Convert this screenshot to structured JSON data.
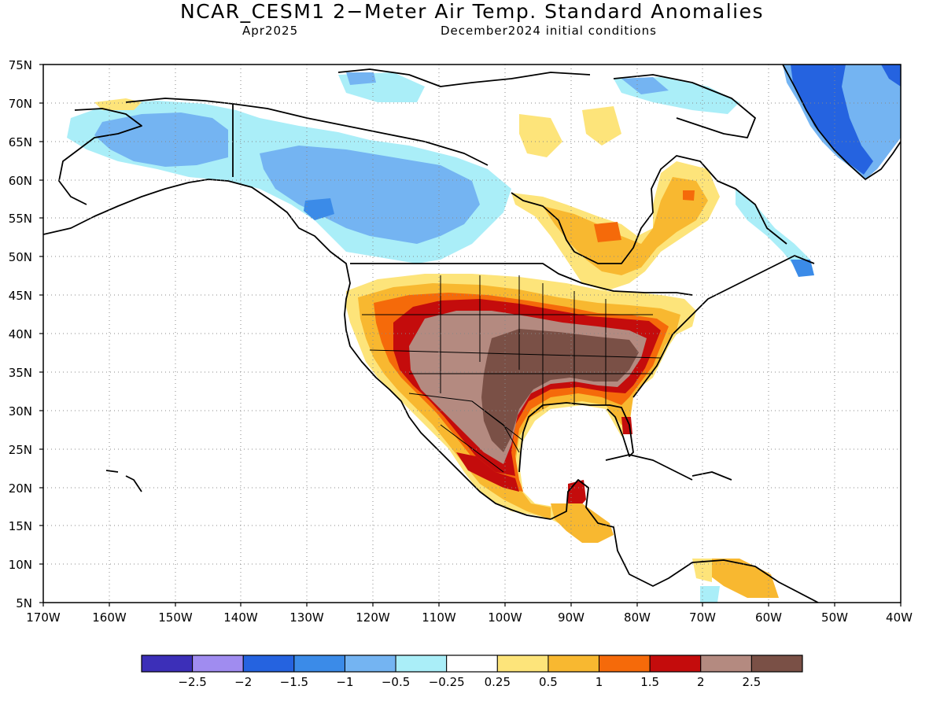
{
  "title": "NCAR_CESM1 2−Meter Air Temp. Standard Anomalies",
  "subtitle_left": "Apr2025",
  "subtitle_right": "December2024 initial conditions",
  "lat_labels": [
    "75N",
    "70N",
    "65N",
    "60N",
    "55N",
    "50N",
    "45N",
    "40N",
    "35N",
    "30N",
    "25N",
    "20N",
    "15N",
    "10N",
    "5N"
  ],
  "lon_labels": [
    "170W",
    "160W",
    "150W",
    "140W",
    "130W",
    "120W",
    "110W",
    "100W",
    "90W",
    "80W",
    "70W",
    "60W",
    "50W",
    "40W"
  ],
  "map_extent": {
    "lon_min": -170,
    "lon_max": -40,
    "lat_min": 5,
    "lat_max": 75
  },
  "colorbar": {
    "colors": [
      "#3c2fb8",
      "#a08cf0",
      "#2563e0",
      "#3b8be8",
      "#74b4f2",
      "#aaeef8",
      "#ffffff",
      "#fde47a",
      "#f8b830",
      "#f56a0a",
      "#c40c0c",
      "#b48a80",
      "#7a5046"
    ],
    "labels": [
      "−2.5",
      "−2",
      "−1.5",
      "−1",
      "−0.5",
      "−0.25",
      "0.25",
      "0.5",
      "1",
      "1.5",
      "2",
      "2.5"
    ]
  },
  "anomaly_regions": [
    {
      "color": "#aaeef8",
      "label": "Alaska / NW Canada negative anomaly"
    },
    {
      "color": "#74b4f2",
      "label": "Western Canada negative anomaly"
    },
    {
      "color": "#2563e0",
      "label": "Greenland negative anomaly"
    },
    {
      "color": "#f8b830",
      "label": "Hudson Bay / Quebec positive anomaly"
    },
    {
      "color": "#c40c0c",
      "label": "US warm ring"
    },
    {
      "color": "#b48a80",
      "label": "Central US strong warm"
    },
    {
      "color": "#7a5046",
      "label": "Southern Plains strongest warm"
    }
  ]
}
